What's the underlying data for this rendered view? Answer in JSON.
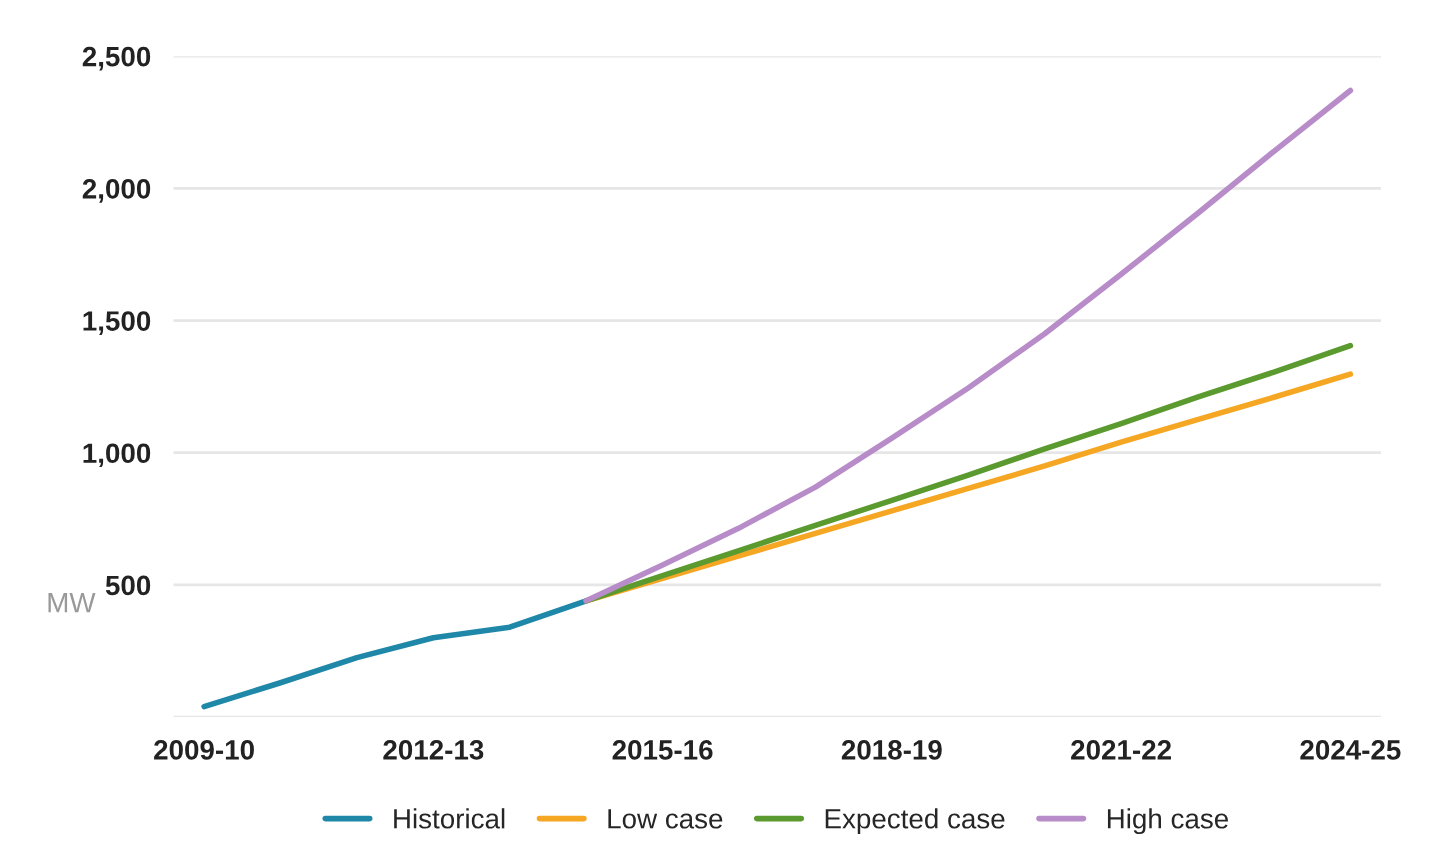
{
  "chart_data": {
    "type": "line",
    "ylabel": "MW",
    "categories": [
      "2009-10",
      null,
      null,
      "2012-13",
      null,
      null,
      "2015-16",
      null,
      null,
      "2018-19",
      null,
      null,
      "2021-22",
      null,
      null,
      "2024-25"
    ],
    "series": [
      {
        "name": "Historical",
        "color": "#1f87a8",
        "values": [
          40,
          130,
          225,
          300,
          340,
          440,
          null,
          null,
          null,
          null,
          null,
          null,
          null,
          null,
          null,
          null
        ]
      },
      {
        "name": "Low case",
        "color": "#f5a623",
        "values": [
          null,
          null,
          null,
          null,
          null,
          440,
          525,
          610,
          695,
          780,
          865,
          950,
          1040,
          1125,
          1210,
          1297
        ]
      },
      {
        "name": "Expected case",
        "color": "#5a9a2f",
        "values": [
          null,
          null,
          null,
          null,
          null,
          440,
          535,
          630,
          725,
          820,
          915,
          1015,
          1110,
          1210,
          1305,
          1405
        ]
      },
      {
        "name": "High case",
        "color": "#b78cc8",
        "values": [
          null,
          null,
          null,
          null,
          null,
          440,
          575,
          715,
          870,
          1055,
          1245,
          1450,
          1675,
          1905,
          2140,
          2370
        ]
      }
    ],
    "ylim": [
      0,
      2500
    ],
    "yticks": [
      {
        "value": 0,
        "label": null
      },
      {
        "value": 500,
        "label": "500"
      },
      {
        "value": 1000,
        "label": "1,000"
      },
      {
        "value": 1500,
        "label": "1,500"
      },
      {
        "value": 2000,
        "label": "2,000"
      },
      {
        "value": 2500,
        "label": "2,500"
      }
    ],
    "grid": "y",
    "legend": "bottom"
  }
}
